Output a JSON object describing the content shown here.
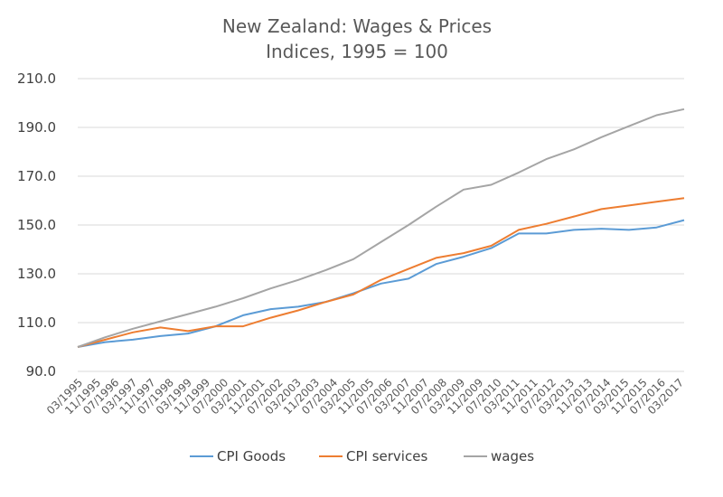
{
  "chart_data": {
    "type": "line",
    "title": "New Zealand: Wages & Prices",
    "subtitle": "Indices, 1995 = 100",
    "xlabel": "",
    "ylabel": "",
    "ylim": [
      90,
      210
    ],
    "yticks": [
      "90.0",
      "110.0",
      "130.0",
      "150.0",
      "170.0",
      "190.0",
      "210.0"
    ],
    "ytick_values": [
      90,
      110,
      130,
      150,
      170,
      190,
      210
    ],
    "x_tick_labels": [
      "03/1995",
      "11/1995",
      "07/1996",
      "03/1997",
      "11/1997",
      "07/1998",
      "03/1999",
      "11/1999",
      "07/2000",
      "03/2001",
      "11/2001",
      "07/2002",
      "03/2003",
      "11/2003",
      "07/2004",
      "03/2005",
      "11/2005",
      "07/2006",
      "03/2007",
      "11/2007",
      "07/2008",
      "03/2009",
      "11/2009",
      "07/2010",
      "03/2011",
      "11/2011",
      "07/2012",
      "03/2013",
      "11/2013",
      "07/2014",
      "03/2015",
      "11/2015",
      "07/2016",
      "03/2017"
    ],
    "grid": "horizontal",
    "legend_position": "bottom",
    "x": [
      "1995",
      "1996",
      "1997",
      "1998",
      "1999",
      "2000",
      "2001",
      "2002",
      "2003",
      "2004",
      "2005",
      "2006",
      "2007",
      "2008",
      "2009",
      "2010",
      "2011",
      "2012",
      "2013",
      "2014",
      "2015",
      "2016",
      "2017"
    ],
    "series": [
      {
        "name": "CPI Goods",
        "color": "#5b9bd5",
        "values": [
          100.0,
          102.0,
          103.0,
          104.5,
          105.5,
          108.5,
          113.0,
          115.5,
          116.5,
          118.5,
          122.0,
          126.0,
          128.0,
          134.0,
          137.0,
          140.5,
          146.5,
          146.5,
          148.0,
          148.5,
          148.0,
          149.0,
          152.0
        ]
      },
      {
        "name": "CPI services",
        "color": "#ed7d31",
        "values": [
          100.0,
          103.0,
          106.0,
          108.0,
          106.5,
          108.5,
          108.5,
          112.0,
          115.0,
          118.5,
          121.5,
          127.5,
          132.0,
          136.5,
          138.5,
          141.5,
          148.0,
          150.5,
          153.5,
          156.5,
          158.0,
          159.5,
          161.0
        ]
      },
      {
        "name": "wages",
        "color": "#a5a5a5",
        "values": [
          100.0,
          104.0,
          107.5,
          110.5,
          113.5,
          116.5,
          120.0,
          124.0,
          127.5,
          131.5,
          136.0,
          143.0,
          150.0,
          157.5,
          164.5,
          166.5,
          171.5,
          177.0,
          181.0,
          186.0,
          190.5,
          195.0,
          197.5
        ]
      }
    ]
  }
}
